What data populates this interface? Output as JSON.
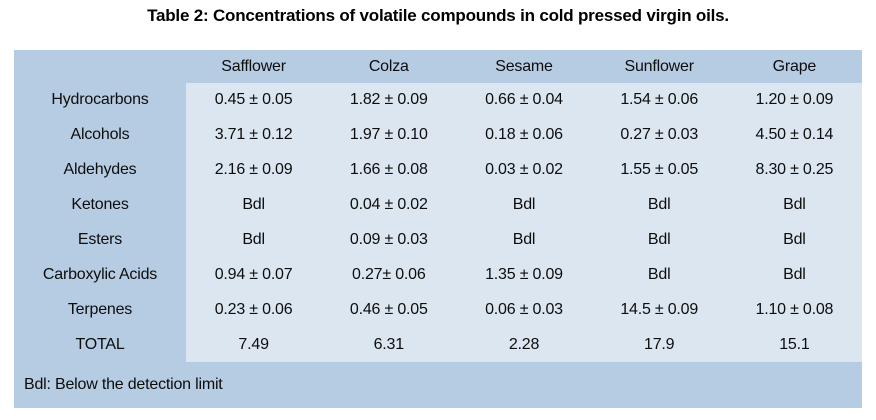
{
  "title": "Table 2: Concentrations of volatile compounds in cold pressed virgin oils.",
  "table": {
    "columns": [
      "",
      "Safflower",
      "Colza",
      "Sesame",
      "Sunflower",
      "Grape"
    ],
    "rows": [
      {
        "label": "Hydrocarbons",
        "values": [
          "0.45 ± 0.05",
          "1.82 ± 0.09",
          "0.66 ± 0.04",
          "1.54 ± 0.06",
          "1.20 ± 0.09"
        ]
      },
      {
        "label": "Alcohols",
        "values": [
          "3.71 ± 0.12",
          "1.97 ± 0.10",
          "0.18 ± 0.06",
          "0.27 ± 0.03",
          "4.50 ± 0.14"
        ]
      },
      {
        "label": "Aldehydes",
        "values": [
          "2.16 ± 0.09",
          "1.66 ± 0.08",
          "0.03 ± 0.02",
          "1.55 ± 0.05",
          "8.30 ± 0.25"
        ]
      },
      {
        "label": "Ketones",
        "values": [
          "Bdl",
          "0.04 ± 0.02",
          "Bdl",
          "Bdl",
          "Bdl"
        ]
      },
      {
        "label": "Esters",
        "values": [
          "Bdl",
          "0.09 ± 0.03",
          "Bdl",
          "Bdl",
          "Bdl"
        ]
      },
      {
        "label": "Carboxylic Acids",
        "values": [
          "0.94 ± 0.07",
          "0.27± 0.06",
          "1.35 ± 0.09",
          "Bdl",
          "Bdl"
        ]
      },
      {
        "label": "Terpenes",
        "values": [
          "0.23 ± 0.06",
          "0.46 ± 0.05",
          "0.06 ± 0.03",
          "14.5 ± 0.09",
          "1.10 ± 0.08"
        ]
      },
      {
        "label": "TOTAL",
        "values": [
          "7.49",
          "6.31",
          "2.28",
          "17.9",
          "15.1"
        ]
      }
    ],
    "footnote": "Bdl: Below the detection limit"
  },
  "colors": {
    "band_bg": "#b6cce3",
    "cell_bg": "#dce6f1",
    "text": "#0d0d0d"
  }
}
